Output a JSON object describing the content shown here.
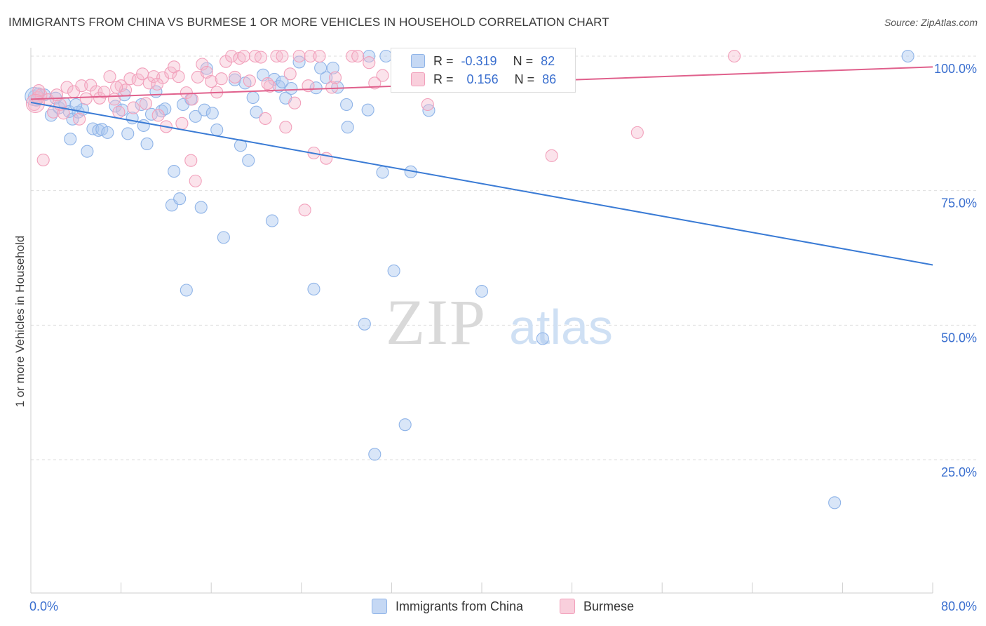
{
  "page": {
    "title": "IMMIGRANTS FROM CHINA VS BURMESE 1 OR MORE VEHICLES IN HOUSEHOLD CORRELATION CHART",
    "source": "Source: ZipAtlas.com",
    "watermark_zip": "ZIP",
    "watermark_atlas": "atlas"
  },
  "legend": {
    "series": [
      {
        "name": "Immigrants from China",
        "r_label": "R =",
        "r_value": "-0.319",
        "n_label": "N =",
        "n_value": "82",
        "color": "#8fb4e8",
        "fill": "#c5d8f4"
      },
      {
        "name": "Burmese",
        "r_label": "R =",
        "r_value": "0.156",
        "n_label": "N =",
        "n_value": "86",
        "color": "#f2a0bb",
        "fill": "#f9cfdc"
      }
    ]
  },
  "chart_data": {
    "type": "scatter",
    "title": "IMMIGRANTS FROM CHINA VS BURMESE 1 OR MORE VEHICLES IN HOUSEHOLD CORRELATION CHART",
    "xlabel": "",
    "ylabel": "1 or more Vehicles in Household",
    "xlim": [
      0,
      80
    ],
    "ylim": [
      0,
      105
    ],
    "x_tick_labels": [
      "0.0%",
      "80.0%"
    ],
    "y_ticks": [
      25,
      50,
      75,
      100
    ],
    "y_tick_labels": [
      "25.0%",
      "50.0%",
      "75.0%",
      "100.0%"
    ],
    "grid": true,
    "legend_position": "top-center",
    "series": [
      {
        "name": "Immigrants from China",
        "color": "#8fb4e8",
        "trend_color": "#3a7bd5",
        "trend": {
          "x": [
            0,
            80
          ],
          "y": [
            91.4,
            61.2
          ]
        },
        "points": [
          [
            0.3,
            92.5
          ],
          [
            0.5,
            91.8
          ],
          [
            0.7,
            93.0
          ],
          [
            1.2,
            92.8
          ],
          [
            1.8,
            89.0
          ],
          [
            2.2,
            92.2
          ],
          [
            2.5,
            90.4
          ],
          [
            3.0,
            91.2
          ],
          [
            3.4,
            89.7
          ],
          [
            3.5,
            84.6
          ],
          [
            3.7,
            88.3
          ],
          [
            4.2,
            89.6
          ],
          [
            4.6,
            90.1
          ],
          [
            5.0,
            82.3
          ],
          [
            5.5,
            86.5
          ],
          [
            6.0,
            86.2
          ],
          [
            6.3,
            86.4
          ],
          [
            6.8,
            85.8
          ],
          [
            7.5,
            90.7
          ],
          [
            8.1,
            90.0
          ],
          [
            8.3,
            92.8
          ],
          [
            8.6,
            85.6
          ],
          [
            9.0,
            88.5
          ],
          [
            9.8,
            91.0
          ],
          [
            10.0,
            87.1
          ],
          [
            10.3,
            83.7
          ],
          [
            10.7,
            89.2
          ],
          [
            11.1,
            93.4
          ],
          [
            11.6,
            89.8
          ],
          [
            11.9,
            90.2
          ],
          [
            12.5,
            72.3
          ],
          [
            12.7,
            78.6
          ],
          [
            13.2,
            73.5
          ],
          [
            13.5,
            91.0
          ],
          [
            13.8,
            56.5
          ],
          [
            14.2,
            92.0
          ],
          [
            14.6,
            88.8
          ],
          [
            15.1,
            71.9
          ],
          [
            15.4,
            90.0
          ],
          [
            15.6,
            97.7
          ],
          [
            16.1,
            89.4
          ],
          [
            16.5,
            86.3
          ],
          [
            17.1,
            66.3
          ],
          [
            18.1,
            95.6
          ],
          [
            18.6,
            83.4
          ],
          [
            19.0,
            95.0
          ],
          [
            19.3,
            80.6
          ],
          [
            19.7,
            92.3
          ],
          [
            20.0,
            89.6
          ],
          [
            20.6,
            96.5
          ],
          [
            21.4,
            69.4
          ],
          [
            21.6,
            95.7
          ],
          [
            22.0,
            94.4
          ],
          [
            22.3,
            95.2
          ],
          [
            22.6,
            92.2
          ],
          [
            23.1,
            94.0
          ],
          [
            23.8,
            98.9
          ],
          [
            25.1,
            56.7
          ],
          [
            25.3,
            94.1
          ],
          [
            25.7,
            97.8
          ],
          [
            26.2,
            96.0
          ],
          [
            26.8,
            97.8
          ],
          [
            27.2,
            94.2
          ],
          [
            28.0,
            91.0
          ],
          [
            28.1,
            86.8
          ],
          [
            29.6,
            50.2
          ],
          [
            29.9,
            90.0
          ],
          [
            30.0,
            100.0
          ],
          [
            30.5,
            26.0
          ],
          [
            31.2,
            78.4
          ],
          [
            31.5,
            100.0
          ],
          [
            32.2,
            60.1
          ],
          [
            33.0,
            100.0
          ],
          [
            33.2,
            31.5
          ],
          [
            33.7,
            78.5
          ],
          [
            35.3,
            89.9
          ],
          [
            37.5,
            100.0
          ],
          [
            40.0,
            56.3
          ],
          [
            45.4,
            47.5
          ],
          [
            71.3,
            17.0
          ],
          [
            77.8,
            100.0
          ],
          [
            4.0,
            91.0
          ]
        ]
      },
      {
        "name": "Burmese",
        "color": "#f2a0bb",
        "trend_color": "#e0608c",
        "trend": {
          "x": [
            0,
            80
          ],
          "y": [
            92.0,
            98.0
          ]
        },
        "points": [
          [
            0.3,
            91.0
          ],
          [
            0.6,
            92.3
          ],
          [
            0.9,
            92.8
          ],
          [
            1.1,
            80.7
          ],
          [
            1.5,
            91.9
          ],
          [
            2.0,
            89.6
          ],
          [
            2.6,
            91.0
          ],
          [
            2.9,
            89.4
          ],
          [
            3.2,
            94.2
          ],
          [
            3.8,
            93.4
          ],
          [
            4.3,
            88.3
          ],
          [
            4.5,
            94.5
          ],
          [
            4.9,
            92.1
          ],
          [
            5.3,
            94.6
          ],
          [
            5.8,
            93.4
          ],
          [
            6.1,
            92.2
          ],
          [
            6.5,
            93.3
          ],
          [
            7.0,
            96.2
          ],
          [
            7.4,
            92.0
          ],
          [
            7.8,
            89.6
          ],
          [
            8.0,
            94.5
          ],
          [
            8.4,
            93.7
          ],
          [
            8.8,
            95.8
          ],
          [
            9.1,
            90.4
          ],
          [
            9.5,
            95.6
          ],
          [
            9.9,
            96.7
          ],
          [
            10.2,
            91.2
          ],
          [
            10.5,
            95.0
          ],
          [
            10.9,
            96.2
          ],
          [
            11.3,
            89.0
          ],
          [
            11.7,
            96.0
          ],
          [
            12.0,
            86.9
          ],
          [
            12.4,
            96.9
          ],
          [
            12.7,
            98.0
          ],
          [
            13.1,
            96.2
          ],
          [
            13.4,
            87.5
          ],
          [
            13.8,
            93.2
          ],
          [
            14.2,
            80.6
          ],
          [
            14.6,
            76.8
          ],
          [
            14.8,
            96.1
          ],
          [
            15.2,
            98.5
          ],
          [
            15.6,
            97.0
          ],
          [
            16.0,
            95.3
          ],
          [
            16.5,
            93.3
          ],
          [
            16.9,
            95.8
          ],
          [
            17.3,
            99.0
          ],
          [
            17.8,
            100.0
          ],
          [
            18.1,
            96.1
          ],
          [
            18.5,
            99.6
          ],
          [
            18.9,
            100.0
          ],
          [
            19.4,
            95.4
          ],
          [
            19.9,
            100.0
          ],
          [
            20.4,
            99.8
          ],
          [
            20.8,
            88.4
          ],
          [
            21.2,
            94.4
          ],
          [
            21.8,
            100.0
          ],
          [
            22.3,
            100.0
          ],
          [
            22.6,
            86.8
          ],
          [
            23.0,
            96.7
          ],
          [
            23.4,
            91.3
          ],
          [
            23.8,
            100.0
          ],
          [
            24.3,
            71.4
          ],
          [
            24.8,
            100.0
          ],
          [
            25.1,
            82.0
          ],
          [
            25.6,
            100.0
          ],
          [
            26.2,
            81.0
          ],
          [
            26.7,
            94.2
          ],
          [
            27.0,
            96.0
          ],
          [
            28.5,
            100.0
          ],
          [
            29.0,
            100.0
          ],
          [
            30.0,
            98.8
          ],
          [
            31.2,
            96.4
          ],
          [
            33.0,
            100.0
          ],
          [
            35.2,
            91.0
          ],
          [
            38.8,
            100.0
          ],
          [
            46.2,
            81.5
          ],
          [
            53.8,
            85.8
          ],
          [
            62.4,
            100.0
          ],
          [
            2.3,
            92.8
          ],
          [
            7.6,
            94.2
          ],
          [
            11.2,
            94.8
          ],
          [
            0.7,
            93.6
          ],
          [
            14.3,
            92.0
          ],
          [
            21.0,
            94.9
          ],
          [
            24.6,
            94.5
          ],
          [
            30.5,
            95.0
          ]
        ]
      }
    ]
  }
}
